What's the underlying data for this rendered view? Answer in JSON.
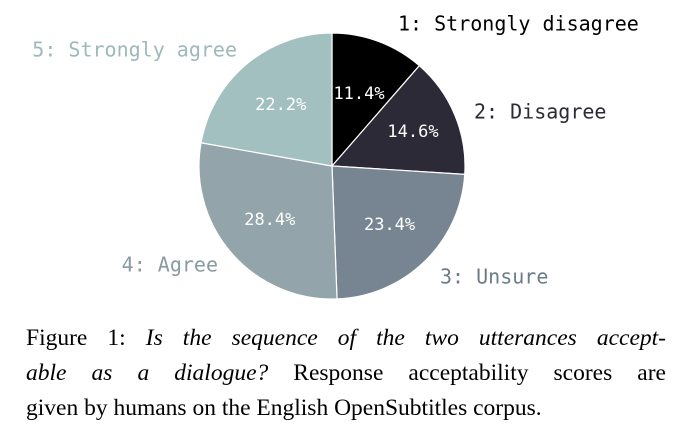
{
  "chart_data": {
    "type": "pie",
    "slices": [
      {
        "label": "1: Strongly disagree",
        "value": 11.4,
        "display": "11.4%",
        "color": "#000000",
        "label_color": "#000000"
      },
      {
        "label": "2: Disagree",
        "value": 14.6,
        "display": "14.6%",
        "color": "#2b2a36",
        "label_color": "#2b2a36"
      },
      {
        "label": "3: Unsure",
        "value": 23.4,
        "display": "23.4%",
        "color": "#778592",
        "label_color": "#6d7b88"
      },
      {
        "label": "4: Agree",
        "value": 28.4,
        "display": "28.4%",
        "color": "#93a5aa",
        "label_color": "#8a9ba0"
      },
      {
        "label": "5: Strongly agree",
        "value": 22.2,
        "display": "22.2%",
        "color": "#a3c0c1",
        "label_color": "#9db9ba"
      }
    ],
    "start_angle": "12 o'clock",
    "direction": "clockwise"
  },
  "caption": {
    "prefix": "Figure 1: ",
    "italic_line1": "Is the sequence of the two utterances accept-",
    "italic_line2": "able as a dialogue?",
    "rest_line2": " Response acceptability scores are",
    "line3": "given by humans on the English OpenSubtitles corpus."
  }
}
